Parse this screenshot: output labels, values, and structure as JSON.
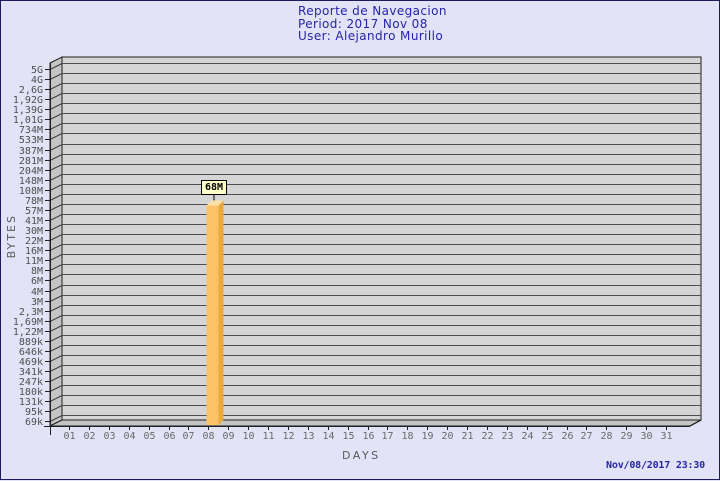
{
  "header": {
    "title": "Reporte de Navegacion",
    "period": "Period: 2017 Nov 08",
    "user": "User: Alejandro Murillo"
  },
  "footer": {
    "timestamp": "Nov/08/2017 23:30"
  },
  "chart_data": {
    "type": "bar",
    "title": "Reporte de Navegacion",
    "subtitle": "Period: 2017 Nov 08",
    "user": "User: Alejandro Murillo",
    "xlabel": "DAYS",
    "ylabel": "BYTES",
    "y_scale": "logarithmic",
    "x_ticks": [
      "01",
      "02",
      "03",
      "04",
      "05",
      "06",
      "07",
      "08",
      "09",
      "10",
      "11",
      "12",
      "13",
      "14",
      "15",
      "16",
      "17",
      "18",
      "19",
      "20",
      "21",
      "22",
      "23",
      "24",
      "25",
      "26",
      "27",
      "28",
      "29",
      "30",
      "31"
    ],
    "y_ticks_top_to_bottom": [
      "5G",
      "4G",
      "2,6G",
      "1,92G",
      "1,39G",
      "1,01G",
      "734M",
      "533M",
      "387M",
      "281M",
      "204M",
      "148M",
      "108M",
      "78M",
      "57M",
      "41M",
      "30M",
      "22M",
      "16M",
      "11M",
      "8M",
      "6M",
      "4M",
      "3M",
      "2,3M",
      "1,69M",
      "1,22M",
      "889k",
      "646k",
      "469k",
      "341k",
      "247k",
      "180k",
      "131k",
      "95k",
      "69k"
    ],
    "bars": [
      {
        "day": "08",
        "label": "68M",
        "value_bytes": 68000000
      }
    ],
    "timestamp": "Nov/08/2017 23:30"
  },
  "colors": {
    "background": "#e3e3f7",
    "plot_plane": "#d5d5d5",
    "side_wall": "#c4c4c4",
    "gridline": "#4f4f4f",
    "axis": "#1f1f1f",
    "bar_front": "#fcc267",
    "bar_side": "#eda93e",
    "bar_top": "#fbe2ab",
    "value_box_bg": "#ffffc9",
    "title_text": "#2525a8",
    "tick_text": "#4f4f4f"
  }
}
